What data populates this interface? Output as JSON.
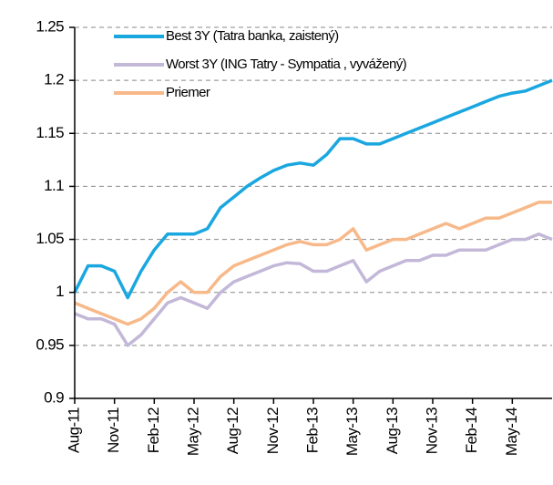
{
  "chart_data": {
    "type": "line",
    "categories": [
      "Aug-11",
      null,
      null,
      "Nov-11",
      null,
      null,
      "Feb-12",
      null,
      null,
      "May-12",
      null,
      null,
      "Aug-12",
      null,
      null,
      "Nov-12",
      null,
      null,
      "Feb-13",
      null,
      null,
      "May-13",
      null,
      null,
      "Aug-13",
      null,
      null,
      "Nov-13",
      null,
      null,
      "Feb-14",
      null,
      null,
      "May-14",
      null,
      null,
      null
    ],
    "series": [
      {
        "name": "Best 3Y (Tatra banka, zaistený)",
        "color": "#1aa7e0",
        "values": [
          1.0,
          1.025,
          1.025,
          1.02,
          0.995,
          1.02,
          1.04,
          1.055,
          1.055,
          1.055,
          1.06,
          1.08,
          1.09,
          1.1,
          1.108,
          1.115,
          1.12,
          1.122,
          1.12,
          1.13,
          1.145,
          1.145,
          1.14,
          1.14,
          1.145,
          1.15,
          1.155,
          1.16,
          1.165,
          1.17,
          1.175,
          1.18,
          1.185,
          1.188,
          1.19,
          1.195,
          1.2
        ]
      },
      {
        "name": "Worst 3Y (ING Tatry - Sympatia , vyvážený)",
        "color": "#c3b8d8",
        "values": [
          0.98,
          0.975,
          0.975,
          0.97,
          0.95,
          0.96,
          0.975,
          0.99,
          0.995,
          0.99,
          0.985,
          1.0,
          1.01,
          1.015,
          1.02,
          1.025,
          1.028,
          1.027,
          1.02,
          1.02,
          1.025,
          1.03,
          1.01,
          1.02,
          1.025,
          1.03,
          1.03,
          1.035,
          1.035,
          1.04,
          1.04,
          1.04,
          1.045,
          1.05,
          1.05,
          1.055,
          1.05
        ]
      },
      {
        "name": "Priemer",
        "color": "#f7b98a",
        "values": [
          0.99,
          0.985,
          0.98,
          0.975,
          0.97,
          0.975,
          0.985,
          1.0,
          1.01,
          1.0,
          1.0,
          1.015,
          1.025,
          1.03,
          1.035,
          1.04,
          1.045,
          1.048,
          1.045,
          1.045,
          1.05,
          1.06,
          1.04,
          1.045,
          1.05,
          1.05,
          1.055,
          1.06,
          1.065,
          1.06,
          1.065,
          1.07,
          1.07,
          1.075,
          1.08,
          1.085,
          1.085
        ]
      }
    ],
    "ylim": [
      0.9,
      1.25
    ],
    "yticks": [
      1.25,
      1.2,
      1.15,
      1.1,
      1.05,
      1,
      0.95,
      0.9
    ],
    "grid": true,
    "legend": "top-left"
  }
}
